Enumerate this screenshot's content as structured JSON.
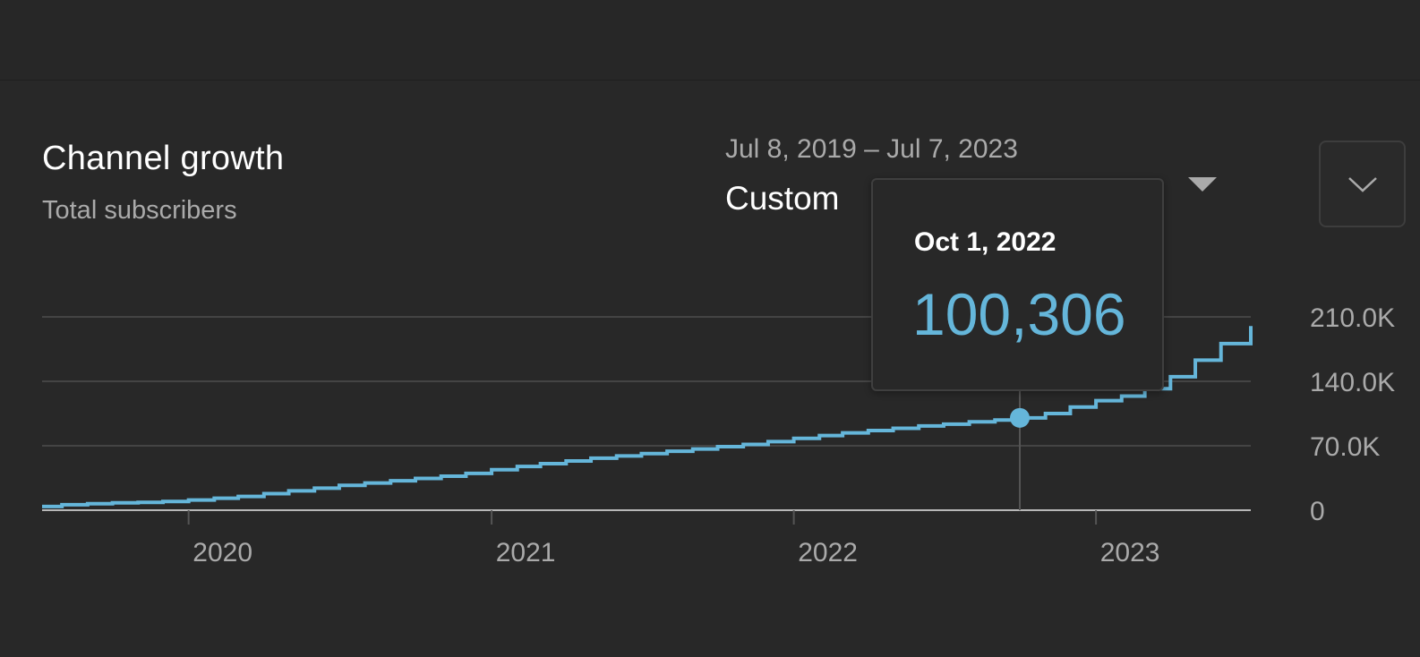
{
  "card": {
    "title": "Channel growth",
    "subtitle": "Total subscribers"
  },
  "period": {
    "date_range": "Jul 8, 2019 – Jul 7, 2023",
    "label": "Custom",
    "dropdown_icon": "caret-down-icon"
  },
  "expand_button": {
    "icon": "chevron-down-icon"
  },
  "tooltip": {
    "date": "Oct 1, 2022",
    "value": "100,306"
  },
  "colors": {
    "background": "#282828",
    "line": "#65b6da",
    "grid": "#444444",
    "axis_text": "#aaaaaa",
    "title": "#ffffff"
  },
  "chart_data": {
    "type": "line",
    "title": "",
    "xlabel": "",
    "ylabel": "",
    "x_ticks": [
      "2020",
      "2021",
      "2022",
      "2023"
    ],
    "y_ticks": [
      "0",
      "70.0K",
      "140.0K",
      "210.0K"
    ],
    "xlim": [
      "2019-07-08",
      "2023-07-07"
    ],
    "ylim": [
      0,
      210000
    ],
    "grid": true,
    "highlight": {
      "x": "2022-10-01",
      "y": 100306
    },
    "series": [
      {
        "x": [
          "2019-07-08",
          "2019-08-01",
          "2019-09-01",
          "2019-10-01",
          "2019-11-01",
          "2019-12-01",
          "2020-01-01",
          "2020-02-01",
          "2020-03-01",
          "2020-04-01",
          "2020-05-01",
          "2020-06-01",
          "2020-07-01",
          "2020-08-01",
          "2020-09-01",
          "2020-10-01",
          "2020-11-01",
          "2020-12-01",
          "2021-01-01",
          "2021-02-01",
          "2021-03-01",
          "2021-04-01",
          "2021-05-01",
          "2021-06-01",
          "2021-07-01",
          "2021-08-01",
          "2021-09-01",
          "2021-10-01",
          "2021-11-01",
          "2021-12-01",
          "2022-01-01",
          "2022-02-01",
          "2022-03-01",
          "2022-04-01",
          "2022-05-01",
          "2022-06-01",
          "2022-07-01",
          "2022-08-01",
          "2022-09-01",
          "2022-10-01",
          "2022-11-01",
          "2022-12-01",
          "2023-01-01",
          "2023-02-01",
          "2023-03-01",
          "2023-04-01",
          "2023-05-01",
          "2023-06-01",
          "2023-07-07"
        ],
        "values": [
          4000,
          6000,
          7000,
          8000,
          8500,
          9500,
          11000,
          13000,
          15000,
          18000,
          21000,
          24000,
          27000,
          29500,
          32000,
          34500,
          37000,
          40000,
          44000,
          47500,
          50500,
          53500,
          56500,
          59000,
          61500,
          64000,
          66500,
          69000,
          71500,
          74500,
          78000,
          81000,
          84000,
          86500,
          89000,
          91500,
          93500,
          96000,
          98000,
          100306,
          105000,
          112000,
          119000,
          124000,
          132000,
          145000,
          163000,
          181000,
          200000
        ]
      }
    ]
  }
}
